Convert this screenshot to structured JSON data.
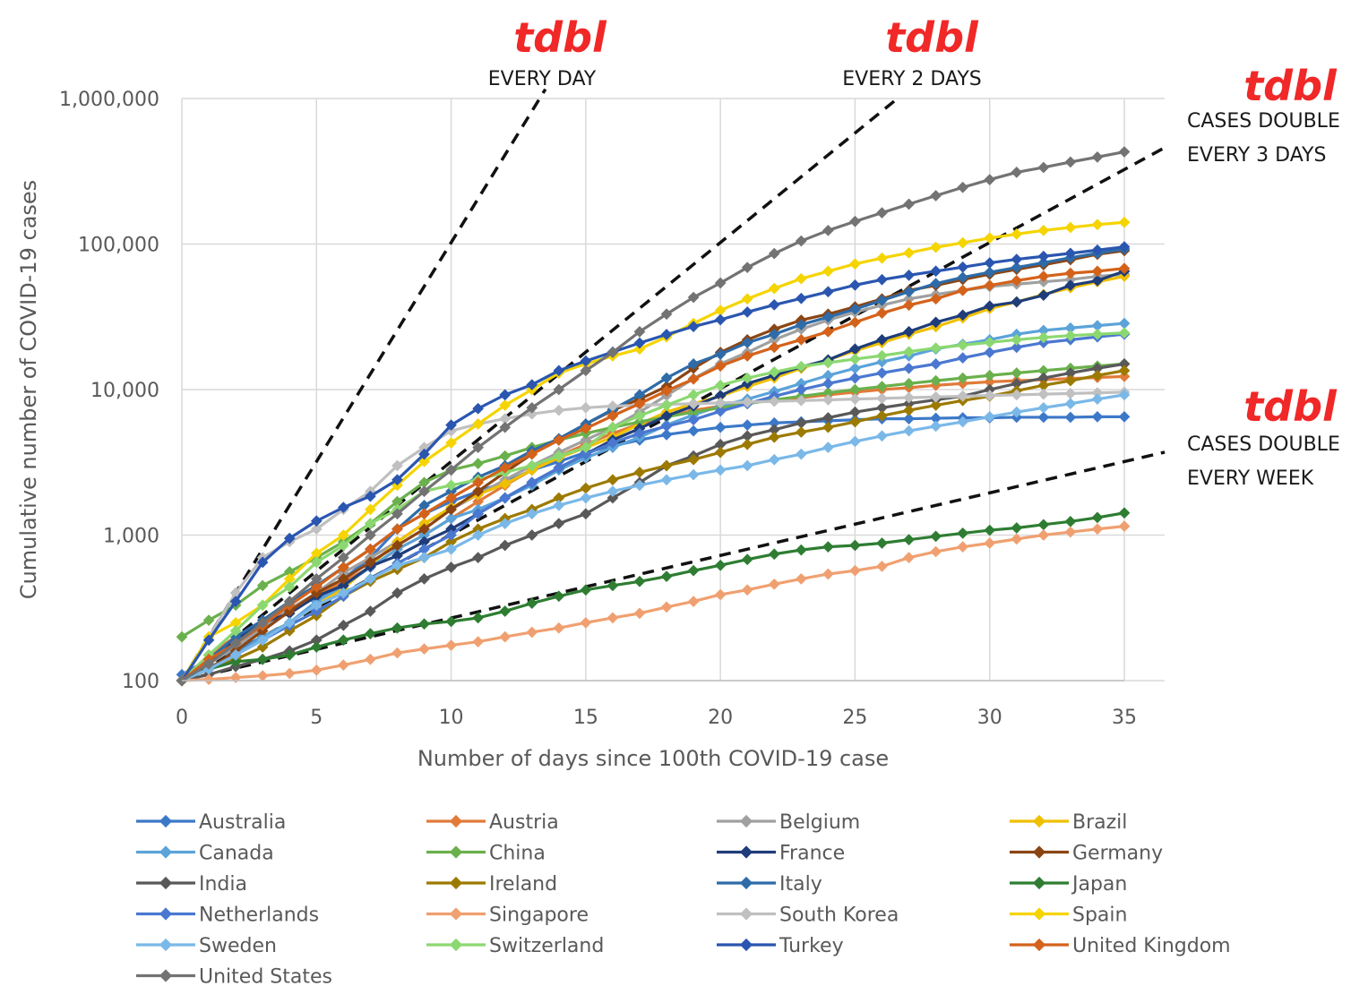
{
  "chart_data": {
    "type": "line",
    "xlabel": "Number of days since 100th COVID-19 case",
    "ylabel": "Cumulative number of COVID-19 cases",
    "xlim": [
      0,
      35
    ],
    "ylim": [
      100,
      1000000
    ],
    "yscale": "log",
    "grid": true,
    "legend_placement": "bottom",
    "x_ticks": [
      "0",
      "5",
      "10",
      "15",
      "20",
      "25",
      "30",
      "35"
    ],
    "y_ticks": [
      "100",
      "1,000",
      "10,000",
      "100,000",
      "1,000,000"
    ],
    "reference_lines": [
      {
        "label": "EVERY DAY",
        "annotation": "tdbl",
        "doubling_days": 1
      },
      {
        "label": "EVERY 2 DAYS",
        "annotation": "tdbl",
        "doubling_days": 2
      },
      {
        "label": "CASES DOUBLE\nEVERY 3 DAYS",
        "annotation": "tdbl",
        "doubling_days": 3
      },
      {
        "label": "CASES DOUBLE\nEVERY WEEK",
        "annotation": "tdbl",
        "doubling_days": 7
      }
    ],
    "x": [
      0,
      1,
      2,
      3,
      4,
      5,
      6,
      7,
      8,
      9,
      10,
      11,
      12,
      13,
      14,
      15,
      16,
      17,
      18,
      19,
      20,
      21,
      22,
      23,
      24,
      25,
      26,
      27,
      28,
      29,
      30,
      31,
      32,
      33,
      34,
      35
    ],
    "series": [
      {
        "name": "Australia",
        "color": "#3c78c8",
        "values": [
          110,
          140,
          160,
          200,
          250,
          350,
          500,
          700,
          1100,
          1400,
          1700,
          2000,
          2300,
          2800,
          3200,
          3700,
          4100,
          4500,
          4900,
          5200,
          5500,
          5700,
          5900,
          6000,
          6100,
          6200,
          6300,
          6300,
          6350,
          6400,
          6400,
          6450,
          6450,
          6450,
          6500,
          6500
        ]
      },
      {
        "name": "Austria",
        "color": "#e07b39",
        "values": [
          100,
          150,
          200,
          250,
          300,
          380,
          480,
          600,
          800,
          1000,
          1300,
          1700,
          2200,
          2800,
          3500,
          4200,
          5000,
          5800,
          6500,
          7200,
          7700,
          8100,
          8500,
          8800,
          9200,
          9600,
          10000,
          10300,
          10700,
          11000,
          11300,
          11500,
          11700,
          11900,
          12100,
          12300
        ]
      },
      {
        "name": "Belgium",
        "color": "#a0a0a0",
        "values": [
          100,
          130,
          170,
          230,
          310,
          400,
          550,
          700,
          900,
          1200,
          1500,
          1900,
          2400,
          3000,
          3700,
          4500,
          5500,
          7000,
          9100,
          11900,
          15000,
          18000,
          22000,
          26000,
          30000,
          34000,
          38000,
          42000,
          45000,
          48000,
          51000,
          53000,
          55000,
          57000,
          60000,
          62000
        ]
      },
      {
        "name": "Brazil",
        "color": "#f0c000",
        "values": [
          100,
          120,
          150,
          200,
          250,
          330,
          430,
          620,
          900,
          1200,
          1550,
          1900,
          2250,
          2800,
          3400,
          4000,
          4700,
          5800,
          7000,
          8000,
          9000,
          10500,
          12000,
          14000,
          16000,
          18500,
          21000,
          24000,
          27000,
          31000,
          36000,
          40000,
          45000,
          50000,
          55000,
          60000
        ]
      },
      {
        "name": "Canada",
        "color": "#5ba3d9",
        "values": [
          100,
          120,
          150,
          200,
          250,
          350,
          450,
          600,
          800,
          1000,
          1300,
          1500,
          1800,
          2200,
          2800,
          3400,
          4000,
          4700,
          5700,
          6700,
          7700,
          8600,
          9700,
          11000,
          12500,
          14000,
          15500,
          17000,
          19000,
          20500,
          22000,
          24000,
          25500,
          26500,
          27500,
          28500
        ]
      },
      {
        "name": "China",
        "color": "#6ab04c",
        "values": [
          200,
          260,
          330,
          450,
          560,
          700,
          900,
          1200,
          1700,
          2300,
          2800,
          3100,
          3500,
          4000,
          4500,
          5000,
          5500,
          6000,
          6500,
          7000,
          7500,
          8000,
          8500,
          9000,
          9500,
          10000,
          10500,
          11000,
          11500,
          12000,
          12500,
          13000,
          13500,
          14000,
          14500,
          15000
        ]
      },
      {
        "name": "France",
        "color": "#1f3d7a",
        "values": [
          100,
          130,
          190,
          250,
          290,
          380,
          450,
          610,
          720,
          900,
          1100,
          1400,
          1800,
          2300,
          2900,
          3600,
          4500,
          5400,
          6600,
          7700,
          9100,
          11000,
          12500,
          14300,
          16000,
          19000,
          22000,
          25000,
          29000,
          32500,
          37500,
          40000,
          44500,
          52000,
          56000,
          65000
        ]
      },
      {
        "name": "Germany",
        "color": "#8b4513",
        "values": [
          100,
          120,
          160,
          220,
          300,
          400,
          500,
          650,
          850,
          1100,
          1500,
          2000,
          2700,
          3600,
          4500,
          5800,
          7200,
          8600,
          10500,
          14000,
          18000,
          22000,
          26000,
          30000,
          33000,
          37000,
          42000,
          48000,
          52000,
          57000,
          62000,
          67000,
          72000,
          78000,
          85000,
          90000
        ]
      },
      {
        "name": "India",
        "color": "#595959",
        "values": [
          100,
          110,
          125,
          140,
          160,
          190,
          240,
          300,
          400,
          500,
          600,
          700,
          850,
          1000,
          1200,
          1400,
          1800,
          2300,
          3000,
          3500,
          4200,
          4800,
          5300,
          5900,
          6400,
          7000,
          7500,
          8000,
          8500,
          9000,
          10000,
          11000,
          12000,
          13000,
          14000,
          15000
        ]
      },
      {
        "name": "Ireland",
        "color": "#9c7a00",
        "values": [
          100,
          120,
          140,
          170,
          220,
          280,
          380,
          480,
          580,
          700,
          900,
          1100,
          1300,
          1500,
          1800,
          2100,
          2400,
          2700,
          3000,
          3300,
          3700,
          4200,
          4700,
          5100,
          5500,
          6000,
          6600,
          7200,
          7800,
          8400,
          9000,
          9800,
          10700,
          11500,
          12500,
          13500
        ]
      },
      {
        "name": "Italy",
        "color": "#2e6ba8",
        "values": [
          100,
          140,
          200,
          260,
          350,
          450,
          600,
          800,
          1100,
          1600,
          2000,
          2500,
          3000,
          3800,
          4600,
          5800,
          7300,
          9200,
          12000,
          15000,
          17500,
          21000,
          24000,
          27900,
          31500,
          35700,
          41000,
          47000,
          53500,
          59000,
          63900,
          69000,
          74400,
          80500,
          86500,
          92500
        ]
      },
      {
        "name": "Japan",
        "color": "#2e7d32",
        "values": [
          100,
          120,
          135,
          140,
          150,
          170,
          190,
          210,
          230,
          245,
          255,
          270,
          300,
          340,
          380,
          420,
          450,
          480,
          520,
          570,
          620,
          680,
          740,
          790,
          830,
          850,
          880,
          930,
          980,
          1030,
          1080,
          1120,
          1180,
          1240,
          1320,
          1420
        ]
      },
      {
        "name": "Netherlands",
        "color": "#4a78d0",
        "values": [
          100,
          120,
          150,
          190,
          240,
          300,
          380,
          500,
          640,
          800,
          1000,
          1400,
          1800,
          2300,
          2900,
          3600,
          4300,
          5000,
          5600,
          6200,
          7100,
          8000,
          9000,
          10000,
          11000,
          12000,
          13000,
          14000,
          15000,
          16500,
          18000,
          19500,
          21000,
          22000,
          23000,
          24000
        ]
      },
      {
        "name": "Singapore",
        "color": "#f0a070",
        "values": [
          100,
          102,
          105,
          108,
          112,
          118,
          128,
          140,
          155,
          165,
          175,
          185,
          200,
          215,
          230,
          250,
          270,
          290,
          320,
          350,
          390,
          420,
          460,
          500,
          540,
          570,
          610,
          700,
          770,
          830,
          880,
          940,
          1000,
          1050,
          1100,
          1150
        ]
      },
      {
        "name": "South Korea",
        "color": "#c0c0c0",
        "values": [
          100,
          200,
          400,
          700,
          900,
          1100,
          1500,
          2000,
          3000,
          4000,
          5200,
          5800,
          6300,
          6800,
          7200,
          7500,
          7700,
          7800,
          7900,
          8000,
          8100,
          8200,
          8300,
          8400,
          8500,
          8600,
          8700,
          8800,
          8900,
          9000,
          9100,
          9200,
          9300,
          9400,
          9500,
          9600
        ]
      },
      {
        "name": "Spain",
        "color": "#f5d400",
        "values": [
          100,
          200,
          250,
          330,
          500,
          750,
          1000,
          1500,
          2200,
          3200,
          4300,
          5800,
          7800,
          10000,
          13000,
          15000,
          17000,
          19000,
          23000,
          28500,
          35000,
          42000,
          49500,
          57800,
          65000,
          73000,
          80000,
          87000,
          95000,
          102000,
          110000,
          117000,
          124000,
          130000,
          136000,
          141000
        ]
      },
      {
        "name": "Sweden",
        "color": "#7ab8e8",
        "values": [
          100,
          120,
          150,
          190,
          250,
          330,
          400,
          500,
          620,
          700,
          800,
          1000,
          1200,
          1400,
          1600,
          1800,
          2000,
          2200,
          2400,
          2600,
          2800,
          3000,
          3300,
          3600,
          4000,
          4400,
          4800,
          5200,
          5600,
          6000,
          6500,
          7000,
          7500,
          8000,
          8600,
          9200
        ]
      },
      {
        "name": "Switzerland",
        "color": "#8bd870",
        "values": [
          100,
          150,
          220,
          330,
          440,
          650,
          850,
          1200,
          1500,
          2000,
          2200,
          2400,
          2700,
          3000,
          3500,
          4000,
          5500,
          6600,
          7800,
          9200,
          10700,
          12000,
          13200,
          14400,
          15300,
          16200,
          17100,
          18200,
          19300,
          20200,
          21100,
          22000,
          22800,
          23500,
          24000,
          24500
        ]
      },
      {
        "name": "Turkey",
        "color": "#2a56b0",
        "values": [
          100,
          190,
          350,
          650,
          950,
          1250,
          1550,
          1850,
          2400,
          3600,
          5700,
          7400,
          9200,
          10800,
          13500,
          15700,
          18100,
          20900,
          23900,
          27100,
          30200,
          34100,
          38200,
          42300,
          47000,
          52200,
          56900,
          61000,
          65100,
          69400,
          74200,
          78500,
          82300,
          86300,
          90900,
          95600
        ]
      },
      {
        "name": "United Kingdom",
        "color": "#d4621a",
        "values": [
          100,
          140,
          180,
          240,
          330,
          440,
          600,
          800,
          1100,
          1400,
          1800,
          2300,
          2900,
          3600,
          4500,
          5400,
          6600,
          8000,
          9800,
          11800,
          14500,
          17000,
          19500,
          22000,
          25000,
          29000,
          33500,
          38000,
          42000,
          48000,
          52000,
          56000,
          60000,
          63000,
          65000,
          68000
        ]
      },
      {
        "name": "United States",
        "color": "#737373",
        "values": [
          100,
          130,
          180,
          250,
          350,
          500,
          700,
          1000,
          1400,
          2000,
          2800,
          4000,
          5500,
          7500,
          10000,
          13500,
          18000,
          25000,
          33000,
          43000,
          54000,
          69000,
          86000,
          105000,
          124000,
          143000,
          164000,
          188000,
          215000,
          245000,
          277000,
          311000,
          336000,
          366000,
          396000,
          430000
        ]
      }
    ]
  }
}
